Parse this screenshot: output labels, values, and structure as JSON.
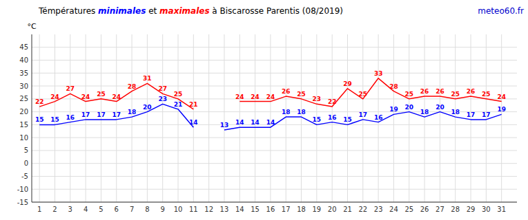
{
  "chart_data": {
    "type": "line",
    "title": "Témpératures minimales et maximales à Biscarosse Parentis (08/2019)",
    "ylabel": "°C",
    "annotations": [
      {
        "text": "meteo60.fr",
        "color": "#0000cd"
      }
    ],
    "x": [
      1,
      2,
      3,
      4,
      5,
      6,
      7,
      8,
      9,
      10,
      11,
      12,
      13,
      14,
      15,
      16,
      17,
      18,
      19,
      20,
      21,
      22,
      23,
      24,
      25,
      26,
      27,
      28,
      29,
      30,
      31
    ],
    "series": [
      {
        "name": "minimales",
        "color": "#0000ff",
        "values": [
          15,
          15,
          16,
          17,
          17,
          17,
          18,
          20,
          23,
          21,
          14,
          null,
          13,
          14,
          14,
          14,
          18,
          18,
          15,
          16,
          15,
          17,
          16,
          19,
          20,
          18,
          20,
          18,
          17,
          17,
          19
        ]
      },
      {
        "name": "maximales",
        "color": "#ff0000",
        "values": [
          22,
          24,
          27,
          24,
          25,
          24,
          28,
          31,
          27,
          25,
          21,
          null,
          null,
          24,
          24,
          24,
          26,
          25,
          23,
          22,
          29,
          25,
          33,
          28,
          25,
          26,
          26,
          25,
          26,
          25,
          24
        ]
      }
    ],
    "xlim": [
      0.5,
      32
    ],
    "xticks": [
      1,
      2,
      3,
      4,
      5,
      6,
      7,
      8,
      9,
      10,
      11,
      12,
      13,
      14,
      15,
      16,
      17,
      18,
      19,
      20,
      21,
      22,
      23,
      24,
      25,
      26,
      27,
      28,
      29,
      30,
      31
    ],
    "ylim": [
      -15,
      50
    ],
    "yticks": [
      -15,
      -10,
      -5,
      0,
      5,
      10,
      15,
      20,
      25,
      30,
      35,
      40,
      45
    ],
    "grid": true,
    "data_labels": true
  }
}
